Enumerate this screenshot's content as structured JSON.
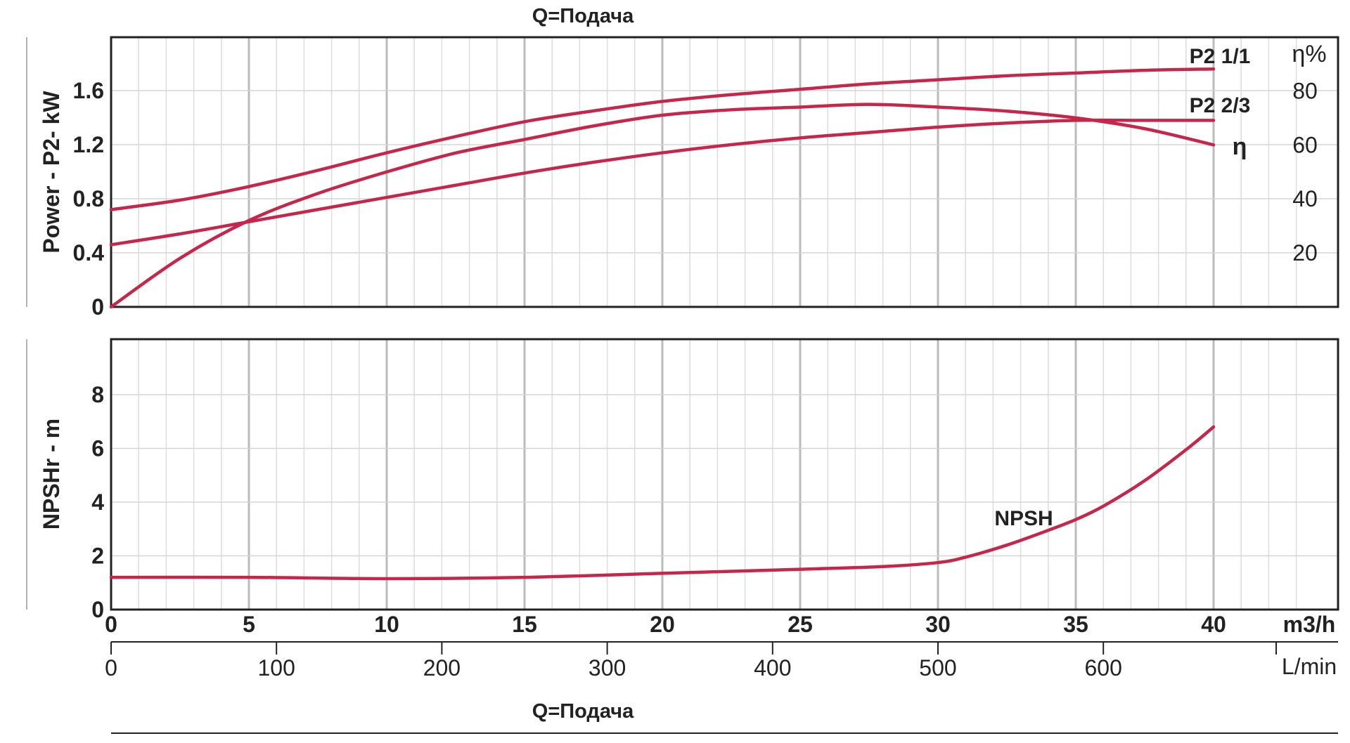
{
  "chart_data": [
    {
      "type": "line",
      "title": "Q=Подача",
      "ylabel": "Power - P2- kW",
      "ylabel_right": "η%",
      "x": [
        0,
        2.5,
        5,
        7.5,
        10,
        12.5,
        15,
        17.5,
        20,
        22.5,
        25,
        27.5,
        30,
        32.5,
        35,
        37.5,
        40
      ],
      "xlim": [
        0,
        43
      ],
      "ylim": [
        0,
        2.0
      ],
      "yticks": [
        "0",
        "0.4",
        "0.8",
        "1.2",
        "1.6"
      ],
      "ytick_values": [
        0,
        0.4,
        0.8,
        1.2,
        1.6
      ],
      "yticks_right": [
        "20",
        "40",
        "60",
        "80"
      ],
      "ytick_right_values": [
        20,
        40,
        60,
        80
      ],
      "y_right_lim": [
        0,
        100
      ],
      "grid": true,
      "series": [
        {
          "name": "P2 1/1",
          "axis": "left",
          "color": "#c8254a",
          "values": [
            0.72,
            0.79,
            0.89,
            1.01,
            1.14,
            1.26,
            1.37,
            1.45,
            1.52,
            1.57,
            1.61,
            1.65,
            1.68,
            1.71,
            1.73,
            1.75,
            1.76
          ]
        },
        {
          "name": "P2 2/3",
          "axis": "left",
          "color": "#c8254a",
          "values": [
            0.46,
            0.54,
            0.63,
            0.72,
            0.81,
            0.9,
            0.99,
            1.07,
            1.14,
            1.2,
            1.25,
            1.29,
            1.33,
            1.36,
            1.38,
            1.38,
            1.38
          ]
        },
        {
          "name": "η",
          "axis": "right",
          "color": "#c8254a",
          "values": [
            0,
            18,
            32,
            42,
            50,
            57,
            62,
            67,
            71,
            73,
            74,
            75,
            74,
            72.5,
            70,
            66,
            60
          ]
        }
      ],
      "labels": {
        "p2_full": "P2 1/1",
        "p2_twothirds": "P2 2/3",
        "eta": "η"
      }
    },
    {
      "type": "line",
      "ylabel": "NPSHr - m",
      "x": [
        0,
        5,
        10,
        15,
        20,
        25,
        28,
        30,
        31,
        32.5,
        34,
        35,
        36,
        37.5,
        39,
        40
      ],
      "xlim": [
        0,
        43
      ],
      "ylim": [
        0,
        10
      ],
      "yticks": [
        "0",
        "2",
        "4",
        "6",
        "8"
      ],
      "ytick_values": [
        0,
        2,
        4,
        6,
        8
      ],
      "grid": true,
      "series": [
        {
          "name": "NPSH",
          "color": "#c8254a",
          "values": [
            1.2,
            1.2,
            1.15,
            1.2,
            1.35,
            1.5,
            1.6,
            1.75,
            1.95,
            2.4,
            2.95,
            3.35,
            3.85,
            4.8,
            5.95,
            6.8
          ]
        }
      ],
      "labels": {
        "npsh": "NPSH"
      }
    }
  ],
  "x_axis": {
    "m3h_ticks": [
      "0",
      "5",
      "10",
      "15",
      "20",
      "25",
      "30",
      "35",
      "40"
    ],
    "m3h_values": [
      0,
      5,
      10,
      15,
      20,
      25,
      30,
      35,
      40
    ],
    "m3h_unit": "m3/h",
    "lmin_ticks": [
      "0",
      "100",
      "200",
      "300",
      "400",
      "500",
      "600"
    ],
    "lmin_values": [
      0,
      100,
      200,
      300,
      400,
      500,
      600
    ],
    "lmin_unit": "L/min",
    "bottom_title": "Q=Подача"
  }
}
